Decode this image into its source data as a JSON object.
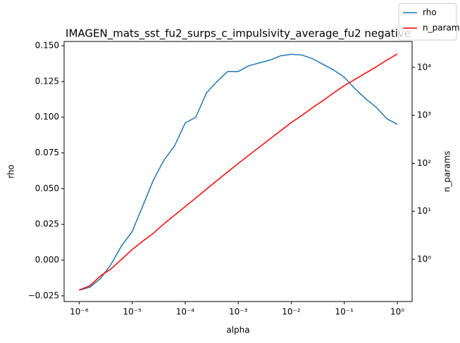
{
  "chart_data": {
    "type": "line",
    "title": "IMAGEN_mats_sst_fu2_surps_c_impulsivity_average_fu2 negative",
    "xlabel": "alpha",
    "ylabel": "rho",
    "y2label": "n_params",
    "xscale": "log",
    "y2scale": "log",
    "legend": "upper right",
    "x": [
      1e-06,
      1.585e-06,
      2.512e-06,
      3.981e-06,
      6.31e-06,
      1e-05,
      1.585e-05,
      2.512e-05,
      3.981e-05,
      6.31e-05,
      0.0001,
      0.0001585,
      0.0002512,
      0.0003981,
      0.000631,
      0.001,
      0.001585,
      0.002512,
      0.003981,
      0.00631,
      0.01,
      0.01585,
      0.02512,
      0.03981,
      0.0631,
      0.1,
      0.1585,
      0.2512,
      0.3981,
      0.631,
      1
    ],
    "series": [
      {
        "name": "rho",
        "color": "#1f77b4",
        "values": [
          -0.021,
          -0.019,
          -0.013,
          -0.003,
          0.01,
          0.02,
          0.038,
          0.056,
          0.07,
          0.08,
          0.096,
          0.1,
          0.117,
          0.125,
          0.132,
          0.132,
          0.136,
          0.138,
          0.14,
          0.143,
          0.144,
          0.1435,
          0.141,
          0.137,
          0.133,
          0.128,
          0.12,
          0.113,
          0.107,
          0.099,
          0.095
        ]
      },
      {
        "name": "n_params",
        "color": "#ff0000",
        "axis": "y2",
        "values": [
          0.23,
          0.28,
          0.45,
          0.63,
          1.0,
          1.6,
          2.4,
          3.5,
          5.5,
          8.3,
          12.6,
          19,
          29,
          44,
          66,
          100,
          148,
          219,
          324,
          479,
          708,
          1000,
          1445,
          2042,
          2951,
          4169,
          5623,
          7586,
          10233,
          14125,
          19055
        ]
      }
    ],
    "xlim": [
      5.2e-07,
      1.9
    ],
    "xticks": [
      {
        "value": 1e-06,
        "label": "10⁻⁶"
      },
      {
        "value": 1e-05,
        "label": "10⁻⁵"
      },
      {
        "value": 0.0001,
        "label": "10⁻⁴"
      },
      {
        "value": 0.001,
        "label": "10⁻³"
      },
      {
        "value": 0.01,
        "label": "10⁻²"
      },
      {
        "value": 0.1,
        "label": "10⁻¹"
      },
      {
        "value": 1,
        "label": "10⁰"
      }
    ],
    "ylim": [
      -0.029,
      0.153
    ],
    "yticks": [
      {
        "value": -0.025,
        "label": "−0.025"
      },
      {
        "value": 0,
        "label": "0.000"
      },
      {
        "value": 0.025,
        "label": "0.025"
      },
      {
        "value": 0.05,
        "label": "0.050"
      },
      {
        "value": 0.075,
        "label": "0.075"
      },
      {
        "value": 0.1,
        "label": "0.100"
      },
      {
        "value": 0.125,
        "label": "0.125"
      },
      {
        "value": 0.15,
        "label": "0.150"
      }
    ],
    "y2lim": [
      0.132,
      34700
    ],
    "y2ticks": [
      {
        "value": 1,
        "label": "10⁰"
      },
      {
        "value": 10,
        "label": "10¹"
      },
      {
        "value": 100,
        "label": "10²"
      },
      {
        "value": 1000,
        "label": "10³"
      },
      {
        "value": 10000,
        "label": "10⁴"
      }
    ]
  }
}
